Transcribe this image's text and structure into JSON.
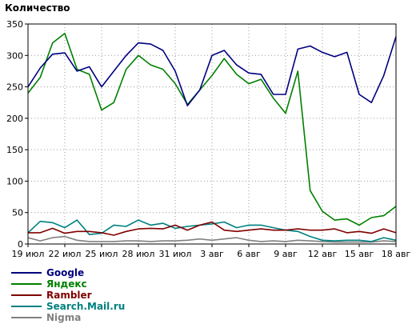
{
  "chart_data": {
    "type": "line",
    "title": "Количество",
    "xlabel": "",
    "ylabel": "",
    "ylim": [
      0,
      350
    ],
    "yticks": [
      0,
      50,
      100,
      150,
      200,
      250,
      300,
      350
    ],
    "grid": true,
    "legend_position": "bottom-left",
    "x_tick_labels": [
      "19 июл",
      "22 июл",
      "25 июл",
      "28 июл",
      "31 июл",
      "3 авг",
      "6 авг",
      "9 авг",
      "12 авг",
      "15 авг",
      "18 авг"
    ],
    "x_tick_days": [
      0,
      3,
      6,
      9,
      12,
      15,
      18,
      21,
      24,
      27,
      30
    ],
    "x_days": [
      0,
      1,
      2,
      3,
      4,
      5,
      6,
      7,
      8,
      9,
      10,
      11,
      12,
      13,
      14,
      15,
      16,
      17,
      18,
      19,
      20,
      21,
      22,
      23,
      24,
      25,
      26,
      27,
      28,
      29,
      30
    ],
    "series": [
      {
        "name": "Google",
        "color": "#000080",
        "values": [
          250,
          280,
          302,
          304,
          275,
          282,
          250,
          275,
          300,
          320,
          318,
          308,
          275,
          220,
          245,
          300,
          308,
          285,
          272,
          270,
          238,
          238,
          310,
          315,
          305,
          298,
          305,
          238,
          225,
          268,
          330
        ]
      },
      {
        "name": "Яндекс",
        "color": "#008000",
        "values": [
          240,
          265,
          320,
          335,
          278,
          270,
          213,
          225,
          278,
          300,
          285,
          278,
          255,
          222,
          245,
          268,
          295,
          270,
          255,
          262,
          232,
          208,
          275,
          85,
          52,
          38,
          40,
          30,
          42,
          45,
          60
        ]
      },
      {
        "name": "Rambler",
        "color": "#800000",
        "values": [
          18,
          18,
          25,
          17,
          20,
          20,
          18,
          14,
          20,
          24,
          25,
          24,
          30,
          22,
          30,
          35,
          22,
          20,
          22,
          24,
          22,
          22,
          24,
          22,
          22,
          24,
          18,
          20,
          17,
          24,
          18
        ]
      },
      {
        "name": "Search.Mail.ru",
        "color": "#008080",
        "values": [
          18,
          36,
          34,
          26,
          38,
          15,
          17,
          30,
          28,
          38,
          30,
          33,
          25,
          28,
          30,
          32,
          35,
          26,
          30,
          30,
          26,
          22,
          20,
          12,
          6,
          5,
          6,
          6,
          4,
          10,
          6
        ]
      },
      {
        "name": "Nigma",
        "color": "#808080",
        "values": [
          10,
          5,
          10,
          12,
          6,
          4,
          4,
          4,
          5,
          5,
          4,
          5,
          5,
          6,
          8,
          6,
          8,
          10,
          6,
          4,
          5,
          4,
          6,
          5,
          4,
          3,
          3,
          3,
          3,
          5,
          4
        ]
      }
    ]
  }
}
